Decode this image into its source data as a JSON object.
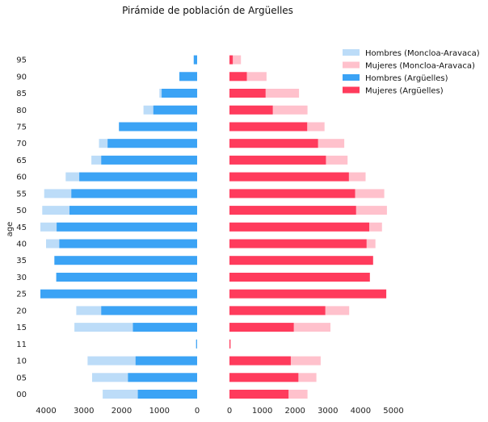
{
  "chart_data": {
    "type": "bar",
    "title": "Pirámide de población de Argüelles",
    "ylabel": "age",
    "categories": [
      "00",
      "05",
      "10",
      "11",
      "15",
      "20",
      "25",
      "30",
      "35",
      "40",
      "45",
      "50",
      "55",
      "60",
      "65",
      "70",
      "75",
      "80",
      "85",
      "90",
      "95"
    ],
    "left_axis": {
      "ticks": [
        4000,
        3000,
        2000,
        1000,
        0
      ],
      "xlim": [
        4300,
        0
      ]
    },
    "right_axis": {
      "ticks": [
        0,
        1000,
        2000,
        3000,
        4000,
        5000
      ],
      "xlim": [
        0,
        5100
      ]
    },
    "series": [
      {
        "name": "Hombres (Moncloa-Aravaca)",
        "side": "left",
        "color": "#bcdcf8",
        "values": [
          2500,
          2780,
          2900,
          40,
          3250,
          3200,
          0,
          0,
          0,
          4000,
          4150,
          4100,
          4050,
          3480,
          2800,
          2600,
          2050,
          1420,
          1000,
          470,
          90
        ]
      },
      {
        "name": "Mujeres (Moncloa-Aravaca)",
        "side": "right",
        "color": "#ffc1cc",
        "values": [
          2380,
          2650,
          2780,
          40,
          3080,
          3650,
          0,
          0,
          0,
          4450,
          4650,
          4800,
          4720,
          4150,
          3600,
          3500,
          2900,
          2380,
          2120,
          1130,
          350
        ]
      },
      {
        "name": "Hombres (Argüelles)",
        "side": "left",
        "color": "#3ba3f5",
        "values": [
          1570,
          1830,
          1630,
          20,
          1700,
          2540,
          4150,
          3730,
          3780,
          3650,
          3720,
          3380,
          3330,
          3120,
          2540,
          2370,
          2070,
          1160,
          940,
          470,
          90
        ]
      },
      {
        "name": "Mujeres (Argüelles)",
        "side": "right",
        "color": "#ff3b5c",
        "values": [
          1800,
          2100,
          1870,
          30,
          1960,
          2920,
          4780,
          4280,
          4380,
          4180,
          4260,
          3860,
          3830,
          3640,
          2940,
          2700,
          2370,
          1320,
          1100,
          530,
          100
        ]
      }
    ],
    "legend_position": "top-right",
    "grid": false
  }
}
